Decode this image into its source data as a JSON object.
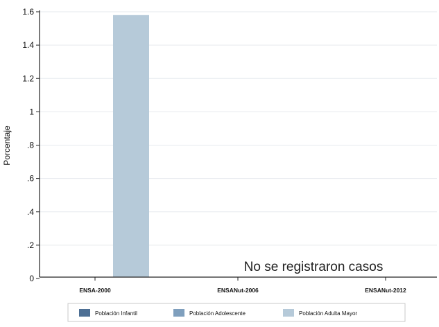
{
  "chart_data": {
    "type": "bar",
    "title": "",
    "xlabel": "",
    "ylabel": "Porcentaje",
    "ylim": [
      0,
      1.6
    ],
    "yticks": [
      "0",
      ".2",
      ".4",
      ".6",
      ".8",
      "1",
      "1.2",
      "1.4",
      "1.6"
    ],
    "ytick_values": [
      0,
      0.2,
      0.4,
      0.6,
      0.8,
      1.0,
      1.2,
      1.4,
      1.6
    ],
    "grid": true,
    "legend_position": "bottom",
    "categories": [
      "ENSA-2000",
      "ENSANut-2006",
      "ENSANut-2012"
    ],
    "series": [
      {
        "name": "Población Infantil",
        "color": "#4d6f94",
        "values": [
          0,
          0,
          0
        ]
      },
      {
        "name": "Población Adolescente",
        "color": "#7f9fbd",
        "values": [
          0,
          0,
          0
        ]
      },
      {
        "name": "Población Adulta Mayor",
        "color": "#b6cad9",
        "values": [
          1.58,
          0,
          0
        ]
      }
    ],
    "annotation": "No se  registraron casos"
  }
}
